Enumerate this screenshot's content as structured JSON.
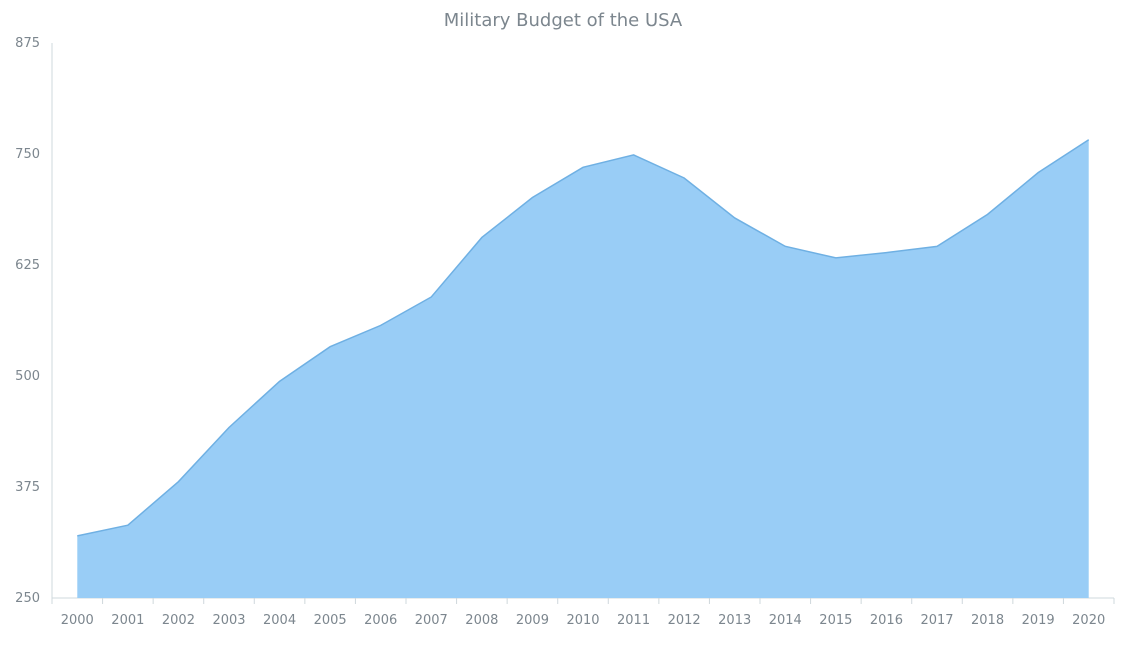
{
  "chart_data": {
    "type": "area",
    "title": "Military Budget of the USA",
    "xlabel": "",
    "ylabel": "",
    "categories": [
      "2000",
      "2001",
      "2002",
      "2003",
      "2004",
      "2005",
      "2006",
      "2007",
      "2008",
      "2009",
      "2010",
      "2011",
      "2012",
      "2013",
      "2014",
      "2015",
      "2016",
      "2017",
      "2018",
      "2019",
      "2020"
    ],
    "series": [
      {
        "name": "",
        "values": [
          320,
          332,
          381,
          442,
          494,
          533,
          557,
          589,
          656,
          701,
          735,
          749,
          723,
          678,
          646,
          633,
          639,
          646,
          682,
          729,
          766
        ]
      }
    ],
    "ylim": [
      250,
      875
    ],
    "yticks": [
      250,
      375,
      500,
      625,
      750,
      875
    ],
    "grid": false,
    "legend": "none",
    "colors": {
      "area_fill": "#99cdf6",
      "area_stroke": "#6fb0e3",
      "axis": "#cfd8dc",
      "text": "#7c868e"
    }
  }
}
